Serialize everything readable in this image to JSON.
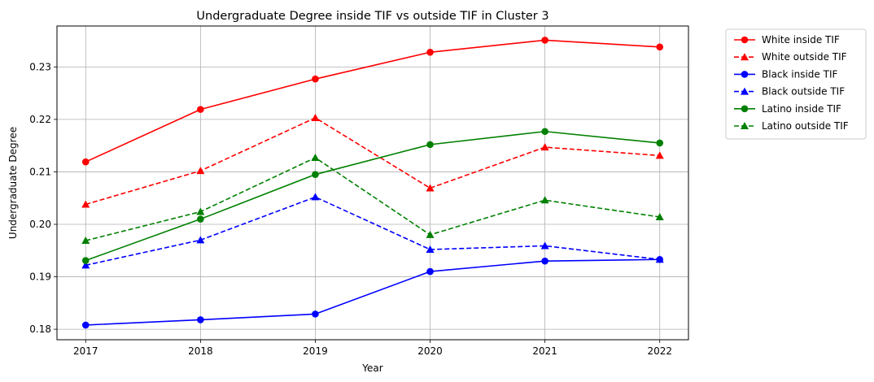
{
  "chart_data": {
    "type": "line",
    "title": "Undergraduate Degree inside TIF vs outside TIF in Cluster 3",
    "xlabel": "Year",
    "ylabel": "Undergraduate Degree",
    "x": [
      "2017",
      "2018",
      "2019",
      "2020",
      "2021",
      "2022"
    ],
    "xlim": [
      2016.75,
      2022.25
    ],
    "ylim": [
      0.178,
      0.2378
    ],
    "yticks": [
      "0.18",
      "0.19",
      "0.20",
      "0.21",
      "0.22",
      "0.23"
    ],
    "grid": true,
    "legend_position": "outside-top-right",
    "series": [
      {
        "name": "White inside TIF",
        "color": "#ff0000",
        "dash": "solid",
        "marker": "circle",
        "values": [
          0.2119,
          0.2219,
          0.2277,
          0.2328,
          0.2351,
          0.2338
        ]
      },
      {
        "name": "White outside TIF",
        "color": "#ff0000",
        "dash": "dashed",
        "marker": "triangle",
        "values": [
          0.2038,
          0.2102,
          0.2203,
          0.2069,
          0.2147,
          0.2131
        ]
      },
      {
        "name": "Black inside TIF",
        "color": "#0000ff",
        "dash": "solid",
        "marker": "circle",
        "values": [
          0.1808,
          0.1818,
          0.1829,
          0.191,
          0.193,
          0.1933
        ]
      },
      {
        "name": "Black outside TIF",
        "color": "#0000ff",
        "dash": "dashed",
        "marker": "triangle",
        "values": [
          0.1922,
          0.197,
          0.2052,
          0.1952,
          0.1959,
          0.1933
        ]
      },
      {
        "name": "Latino inside TIF",
        "color": "#008000",
        "dash": "solid",
        "marker": "circle",
        "values": [
          0.1931,
          0.201,
          0.2095,
          0.2152,
          0.2177,
          0.2155
        ]
      },
      {
        "name": "Latino outside TIF",
        "color": "#008000",
        "dash": "dashed",
        "marker": "triangle",
        "values": [
          0.1969,
          0.2024,
          0.2127,
          0.198,
          0.2046,
          0.2014
        ]
      }
    ]
  }
}
